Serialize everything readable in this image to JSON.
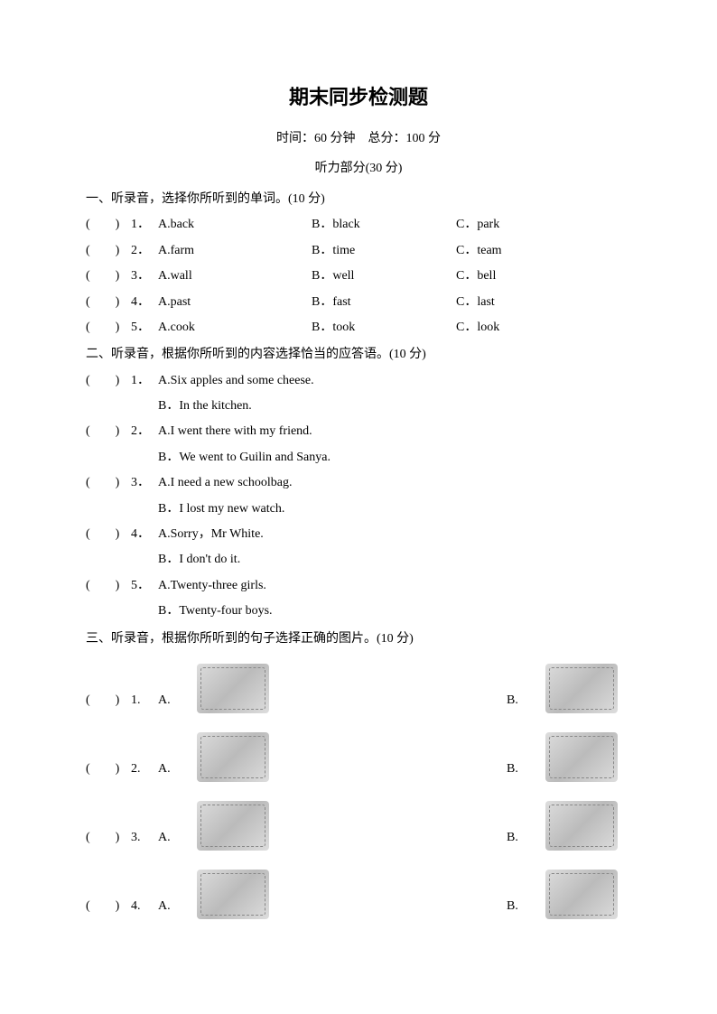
{
  "title": "期末同步检测题",
  "time_score": "时间：60 分钟 总分：100 分",
  "listening_label": "听力部分(30 分)",
  "section1": {
    "heading": "一、听录音，选择你所听到的单词。(10 分)",
    "rows": [
      {
        "n": "1．",
        "a": "A.back",
        "b": "B．black",
        "c": "C．park"
      },
      {
        "n": "2．",
        "a": "A.farm",
        "b": "B．time",
        "c": "C．team"
      },
      {
        "n": "3．",
        "a": "A.wall",
        "b": "B．well",
        "c": "C．bell"
      },
      {
        "n": "4．",
        "a": "A.past",
        "b": "B．fast",
        "c": "C．last"
      },
      {
        "n": "5．",
        "a": "A.cook",
        "b": "B．took",
        "c": "C．look"
      }
    ]
  },
  "section2": {
    "heading": "二、听录音，根据你所听到的内容选择恰当的应答语。(10 分)",
    "rows": [
      {
        "n": "1．",
        "a": "A.Six apples and some cheese.",
        "b": "B．In the kitchen."
      },
      {
        "n": "2．",
        "a": "A.I went there with my friend.",
        "b": "B．We went to Guilin and Sanya."
      },
      {
        "n": "3．",
        "a": "A.I need a new schoolbag.",
        "b": "B．I lost my new watch."
      },
      {
        "n": "4．",
        "a": "A.Sorry，Mr White.",
        "b": "B．I don't do it."
      },
      {
        "n": "5．",
        "a": "A.Twenty-three girls.",
        "b": "B．Twenty-four boys."
      }
    ]
  },
  "section3": {
    "heading": "三、听录音，根据你所听到的句子选择正确的图片。(10 分)",
    "rows": [
      {
        "n": "1.",
        "a": "A.",
        "b": "B."
      },
      {
        "n": "2.",
        "a": "A.",
        "b": "B."
      },
      {
        "n": "3.",
        "a": "A.",
        "b": "B."
      },
      {
        "n": "4.",
        "a": "A.",
        "b": "B."
      }
    ]
  },
  "paren_text": "(  )",
  "colors": {
    "text": "#000000",
    "background": "#ffffff",
    "placeholder_border": "#888888"
  },
  "typography": {
    "title_fontsize": 22,
    "body_fontsize": 14,
    "title_family": "SimHei",
    "body_family": "SimSun"
  }
}
